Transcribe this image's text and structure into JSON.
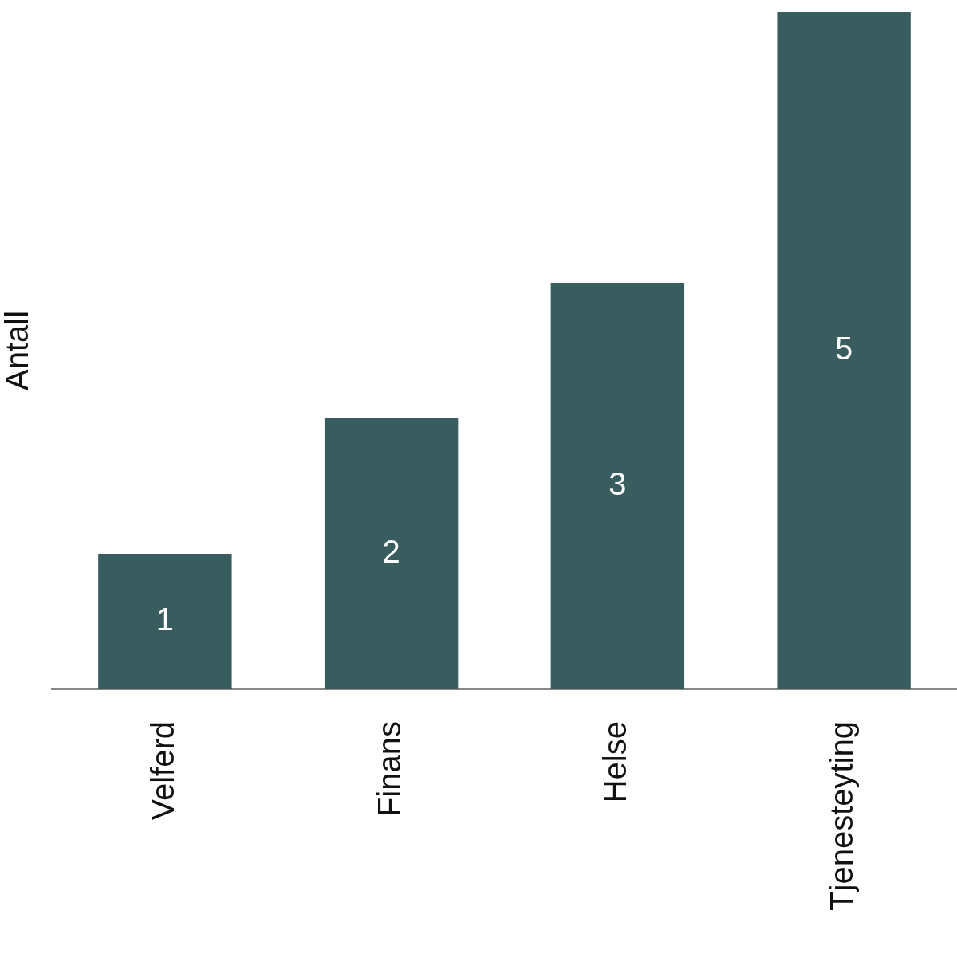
{
  "chart_data": {
    "type": "bar",
    "ylabel": "Antall",
    "categories": [
      "Velferd",
      "Finans",
      "Helse",
      "Tjenesteyting"
    ],
    "values": [
      1,
      2,
      3,
      5
    ],
    "color": "#395d5f",
    "ylim": [
      0,
      5
    ],
    "data_labels": true,
    "grid": false,
    "legend": false
  }
}
